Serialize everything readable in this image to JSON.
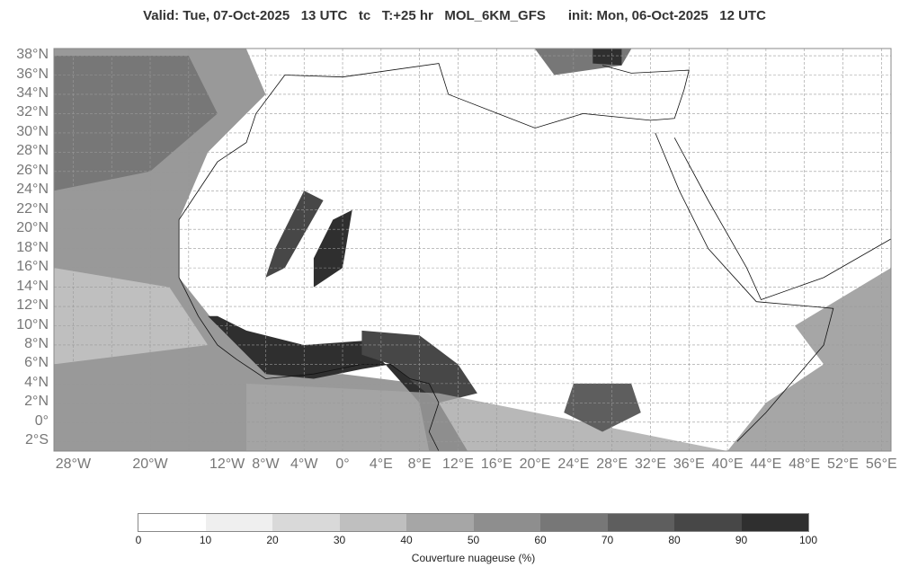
{
  "title": "Valid: Tue, 07-Oct-2025   13 UTC   tc   T:+25 hr   MOL_6KM_GFS      init: Mon, 06-Oct-2025   12 UTC",
  "map": {
    "variable": "total cloud cover",
    "lon_range": [
      -30,
      57
    ],
    "lat_range": [
      -3,
      38.75
    ],
    "lat_labels": [
      "38°N",
      "36°N",
      "34°N",
      "32°N",
      "30°N",
      "28°N",
      "26°N",
      "24°N",
      "22°N",
      "20°N",
      "18°N",
      "16°N",
      "14°N",
      "12°N",
      "10°N",
      "8°N",
      "6°N",
      "4°N",
      "2°N",
      "0°",
      "2°S"
    ],
    "lat_values": [
      38,
      36,
      34,
      32,
      30,
      28,
      26,
      24,
      22,
      20,
      18,
      16,
      14,
      12,
      10,
      8,
      6,
      4,
      2,
      0,
      -2
    ],
    "lon_labels": [
      "28°W",
      "20°W",
      "12°W",
      "8°W",
      "4°W",
      "0°",
      "4°E",
      "8°E",
      "12°E",
      "16°E",
      "20°E",
      "24°E",
      "28°E",
      "32°E",
      "36°E",
      "40°E",
      "44°E",
      "48°E",
      "52°E",
      "56°E"
    ],
    "lon_values": [
      -28,
      -20,
      -12,
      -8,
      -4,
      0,
      4,
      8,
      12,
      16,
      20,
      24,
      28,
      32,
      36,
      40,
      44,
      48,
      52,
      56
    ],
    "grid": true
  },
  "colorbar": {
    "label": "Couverture nuageuse (%)",
    "ticks": [
      "0",
      "10",
      "20",
      "30",
      "40",
      "50",
      "60",
      "70",
      "80",
      "90",
      "100"
    ],
    "colors": [
      "#ffffff",
      "#efefef",
      "#d9d9d9",
      "#bfbfbf",
      "#a6a6a6",
      "#8e8e8e",
      "#777777",
      "#5e5e5e",
      "#474747",
      "#2f2f2f"
    ]
  }
}
